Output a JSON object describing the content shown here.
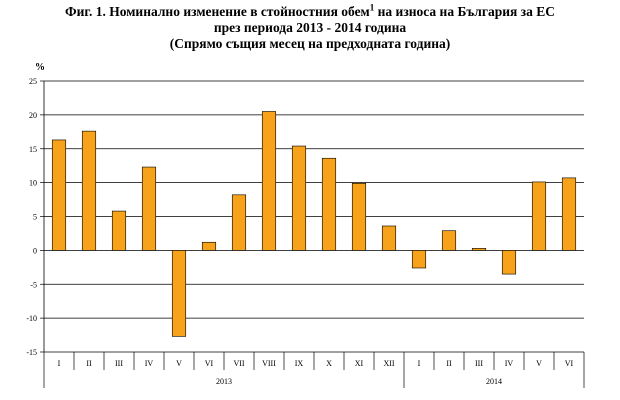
{
  "title": {
    "line1_prefix": "Фиг. 1. Номинално изменение в стойностния обем",
    "line1_sup": "1",
    "line1_suffix": " на износа на България за ЕС",
    "line2": "през периода 2013 - 2014 година",
    "line3": "(Спрямо същия месец на предходната година)"
  },
  "chart_data": {
    "type": "bar",
    "title": "Фиг. 1. Номинално изменение в стойностния обем на износа на България за ЕС през периода 2013 - 2014 година (Спрямо същия месец на предходната година)",
    "ylabel": "%",
    "ylim": [
      -15,
      25
    ],
    "yticks": [
      -15,
      -10,
      -5,
      0,
      5,
      10,
      15,
      20,
      25
    ],
    "grid": true,
    "legend": "none",
    "bar_color": "#F7A21B",
    "categories": [
      "I",
      "II",
      "III",
      "IV",
      "V",
      "VI",
      "VII",
      "VIII",
      "IX",
      "X",
      "XI",
      "XII",
      "I",
      "II",
      "III",
      "IV",
      "V",
      "VI"
    ],
    "year_groups": [
      {
        "label": "2013",
        "count": 12
      },
      {
        "label": "2014",
        "count": 6
      }
    ],
    "series": [
      {
        "values": [
          16.3,
          17.6,
          5.8,
          12.3,
          -12.7,
          1.2,
          8.2,
          20.5,
          15.4,
          13.6,
          9.9,
          3.6,
          -2.6,
          2.9,
          0.3,
          -3.5,
          10.1,
          10.7
        ]
      }
    ]
  }
}
